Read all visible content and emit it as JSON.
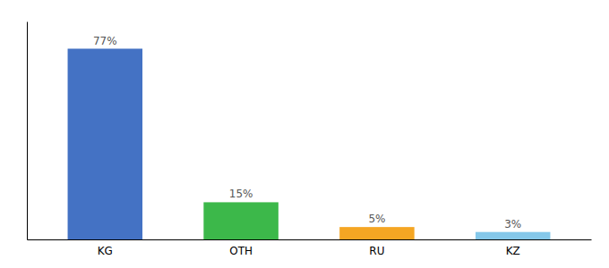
{
  "chart_data": {
    "type": "bar",
    "categories": [
      "KG",
      "OTH",
      "RU",
      "KZ"
    ],
    "values": [
      77,
      15,
      5,
      3
    ],
    "colors": [
      "#4472C4",
      "#3CB84A",
      "#F5A623",
      "#85C8EA"
    ],
    "value_labels": [
      "77%",
      "15%",
      "5%",
      "3%"
    ],
    "data_labels": true,
    "ylim": [
      0,
      88
    ],
    "grid": false,
    "tick_labels": "x"
  }
}
